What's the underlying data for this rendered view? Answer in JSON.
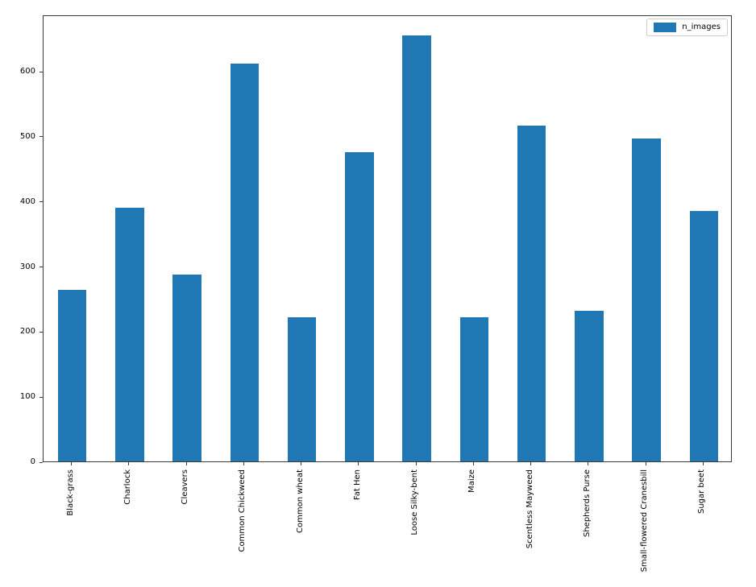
{
  "chart_data": {
    "type": "bar",
    "title": "",
    "xlabel": "",
    "ylabel": "",
    "categories": [
      "Black-grass",
      "Charlock",
      "Cleavers",
      "Common Chickweed",
      "Common wheat",
      "Fat Hen",
      "Loose Silky-bent",
      "Maize",
      "Scentless Mayweed",
      "Shepherds Purse",
      "Small-flowered Cranesbill",
      "Sugar beet"
    ],
    "series": [
      {
        "name": "n_images",
        "values": [
          263,
          390,
          287,
          611,
          221,
          475,
          654,
          221,
          516,
          231,
          496,
          385
        ]
      }
    ],
    "legend": {
      "position": "upper right",
      "entries": [
        {
          "label": "n_images",
          "color": "#1f77b4"
        }
      ]
    },
    "ylim": [
      0,
      686.7
    ],
    "yticks": [
      0,
      100,
      200,
      300,
      400,
      500,
      600
    ],
    "grid": false,
    "bar_color": "#1f77b4",
    "bar_rel_width": 0.5,
    "x_tick_rotation": 90
  },
  "figure": {
    "background": "#ffffff",
    "spine_color": "#3b3b3b",
    "text_color": "#000000"
  }
}
